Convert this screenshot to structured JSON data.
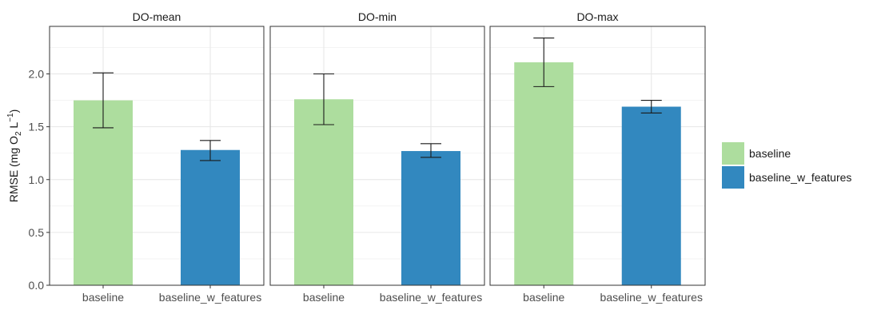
{
  "chart_data": {
    "type": "bar",
    "ylabel": "RMSE (mg O2 L-1)",
    "ylabel_parts": {
      "pre": "RMSE (mg O",
      "sub": "2",
      "mid": " L",
      "sup": "−1",
      "post": ")"
    },
    "ylim": [
      0,
      2.45
    ],
    "yticks": [
      0.0,
      0.5,
      1.0,
      1.5,
      2.0
    ],
    "ytick_labels": [
      "0.0",
      "0.5",
      "1.0",
      "1.5",
      "2.0"
    ],
    "grid": true,
    "legend_position": "right",
    "categories": [
      "baseline",
      "baseline_w_features"
    ],
    "series_colors": {
      "baseline": "#ADDD9E",
      "baseline_w_features": "#3288BF"
    },
    "legend": [
      {
        "name": "baseline",
        "color": "#ADDD9E"
      },
      {
        "name": "baseline_w_features",
        "color": "#3288BF"
      }
    ],
    "panels": [
      {
        "title": "DO-mean",
        "bars": [
          {
            "category": "baseline",
            "value": 1.75,
            "err_low": 1.49,
            "err_high": 2.01
          },
          {
            "category": "baseline_w_features",
            "value": 1.28,
            "err_low": 1.18,
            "err_high": 1.37
          }
        ]
      },
      {
        "title": "DO-min",
        "bars": [
          {
            "category": "baseline",
            "value": 1.76,
            "err_low": 1.52,
            "err_high": 2.0
          },
          {
            "category": "baseline_w_features",
            "value": 1.27,
            "err_low": 1.21,
            "err_high": 1.34
          }
        ]
      },
      {
        "title": "DO-max",
        "bars": [
          {
            "category": "baseline",
            "value": 2.11,
            "err_low": 1.88,
            "err_high": 2.34
          },
          {
            "category": "baseline_w_features",
            "value": 1.69,
            "err_low": 1.63,
            "err_high": 1.75
          }
        ]
      }
    ]
  }
}
